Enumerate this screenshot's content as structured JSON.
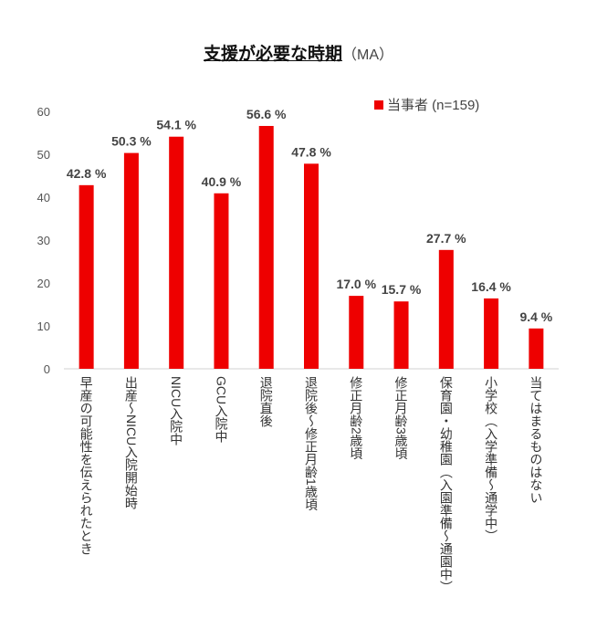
{
  "chart_data": {
    "type": "bar",
    "title": "支援が必要な時期",
    "subtitle": "（MA）",
    "categories": [
      "早産の可能性を伝えられたとき",
      "出産～NICU入院開始時",
      "NICU入院中",
      "GCU入院中",
      "退院直後",
      "退院後～修正月齢1歳頃",
      "修正月齢2歳頃",
      "修正月齢3歳頃",
      "保育園・幼稚園（入園準備～通園中）",
      "小学校（入学準備～通学中）",
      "当てはまるものはない"
    ],
    "series": [
      {
        "name": "当事者 (n=159)",
        "values": [
          42.8,
          50.3,
          54.1,
          40.9,
          56.6,
          47.8,
          17.0,
          15.7,
          27.7,
          16.4,
          9.4
        ],
        "color": "#ee0000"
      }
    ],
    "data_labels": [
      "42.8 %",
      "50.3 %",
      "54.1 %",
      "40.9 %",
      "56.6 %",
      "47.8 %",
      "17.0 %",
      "15.7 %",
      "27.7 %",
      "16.4 %",
      "9.4 %"
    ],
    "ylim": [
      0,
      60
    ],
    "yticks": [
      "0",
      "10",
      "20",
      "30",
      "40",
      "50",
      "60"
    ],
    "grid": false,
    "legend_position": "top-right"
  }
}
